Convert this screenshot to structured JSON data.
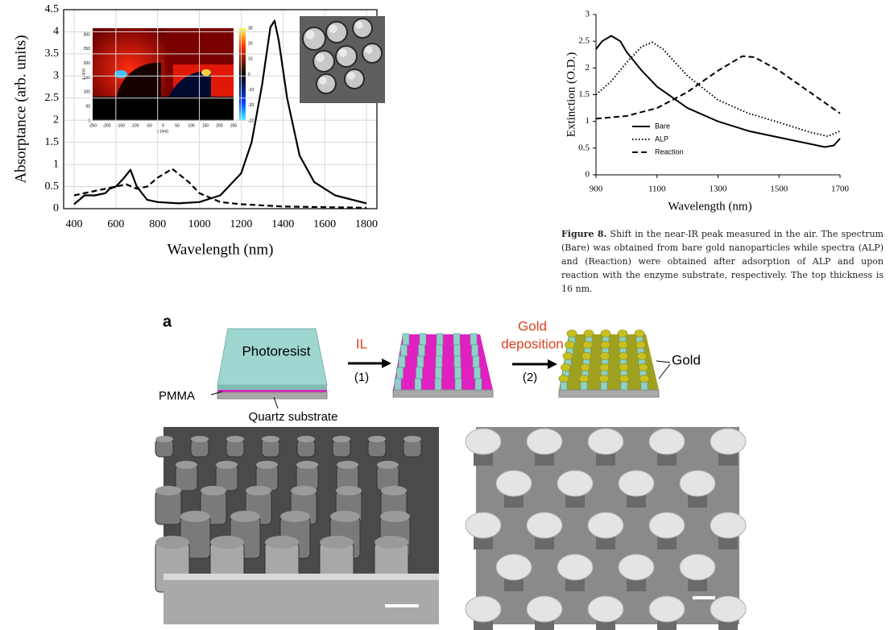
{
  "chart_data": [
    {
      "type": "line",
      "x_label": "Wavelength (nm)",
      "y_label": "Absorptance (arb. units)",
      "xlim": [
        350,
        1850
      ],
      "xticks": [
        400,
        600,
        800,
        1000,
        1200,
        1400,
        1600,
        1800
      ],
      "ylim": [
        0,
        4.5
      ],
      "yticks": [
        0,
        0.5,
        1,
        1.5,
        2,
        2.5,
        3,
        3.5,
        4,
        4.5
      ],
      "grid": true,
      "series": [
        {
          "color": "#000000",
          "style": "solid",
          "x": [
            400,
            450,
            500,
            550,
            570,
            600,
            640,
            670,
            700,
            750,
            800,
            900,
            1000,
            1100,
            1200,
            1250,
            1300,
            1340,
            1360,
            1380,
            1420,
            1480,
            1550,
            1650,
            1800
          ],
          "values": [
            0.1,
            0.3,
            0.3,
            0.35,
            0.45,
            0.5,
            0.7,
            0.88,
            0.5,
            0.2,
            0.15,
            0.12,
            0.15,
            0.3,
            0.8,
            1.5,
            2.8,
            4.1,
            4.25,
            3.8,
            2.5,
            1.2,
            0.6,
            0.3,
            0.12
          ]
        },
        {
          "color": "#000000",
          "style": "dashed",
          "x": [
            400,
            500,
            600,
            650,
            700,
            750,
            800,
            870,
            950,
            1000,
            1100,
            1200,
            1400,
            1800
          ],
          "values": [
            0.3,
            0.4,
            0.5,
            0.55,
            0.45,
            0.5,
            0.7,
            0.9,
            0.6,
            0.35,
            0.15,
            0.1,
            0.05,
            0.02
          ]
        }
      ],
      "inset": {
        "x_label": "x (nm)",
        "y_label": "z (nm)",
        "x_ticks": [
          -250,
          -200,
          -150,
          -100,
          -50,
          0,
          50,
          100,
          150,
          200,
          250
        ],
        "y_ticks": [
          0,
          50,
          100,
          150,
          200,
          250,
          300
        ],
        "colorbar_ticks": [
          30,
          20,
          10,
          0,
          -10,
          -20,
          -30
        ]
      }
    },
    {
      "type": "line",
      "x_label": "Wavelength (nm)",
      "y_label": "Extinction (O.D.)",
      "xlim": [
        900,
        1700
      ],
      "xticks": [
        900,
        1100,
        1300,
        1500,
        1700
      ],
      "ylim": [
        0,
        3
      ],
      "yticks": [
        0,
        0.5,
        1,
        1.5,
        2,
        2.5,
        3
      ],
      "grid": false,
      "legend": "lower left",
      "series": [
        {
          "name": "Bare",
          "color": "#000000",
          "style": "solid",
          "x": [
            900,
            920,
            950,
            980,
            1000,
            1050,
            1100,
            1200,
            1300,
            1400,
            1500,
            1600,
            1650,
            1680,
            1700
          ],
          "values": [
            2.35,
            2.5,
            2.6,
            2.5,
            2.3,
            1.95,
            1.65,
            1.25,
            1.0,
            0.82,
            0.7,
            0.58,
            0.52,
            0.55,
            0.68
          ]
        },
        {
          "name": "ALP",
          "color": "#000000",
          "style": "dotted",
          "x": [
            900,
            950,
            1000,
            1050,
            1085,
            1120,
            1200,
            1300,
            1400,
            1500,
            1600,
            1660,
            1700
          ],
          "values": [
            1.5,
            1.75,
            2.1,
            2.4,
            2.48,
            2.35,
            1.85,
            1.4,
            1.15,
            0.98,
            0.8,
            0.72,
            0.82
          ]
        },
        {
          "name": "Reaction",
          "color": "#000000",
          "style": "dashed",
          "x": [
            900,
            1000,
            1100,
            1200,
            1300,
            1380,
            1420,
            1500,
            1600,
            1700
          ],
          "values": [
            1.05,
            1.1,
            1.25,
            1.55,
            1.95,
            2.22,
            2.2,
            1.95,
            1.55,
            1.15
          ]
        }
      ]
    }
  ],
  "caption": {
    "label": "Figure 8.",
    "text": "Shift in the near-IR peak measured in the air. The spectrum (Bare) was obtained from bare gold nanoparticles while spectra (ALP) and (Reaction) were obtained after adsorption of ALP and upon reaction with the enzyme substrate, respectively. The top thickness is 16 nm."
  },
  "diagram": {
    "panel": "a",
    "photoresist": "Photoresist",
    "pmma": "PMMA",
    "substrate": "Quartz substrate",
    "step1_label": "IL",
    "step1_number": "(1)",
    "step2_label_line1": "Gold",
    "step2_label_line2": "deposition",
    "step2_number": "(2)",
    "gold": "Gold"
  }
}
